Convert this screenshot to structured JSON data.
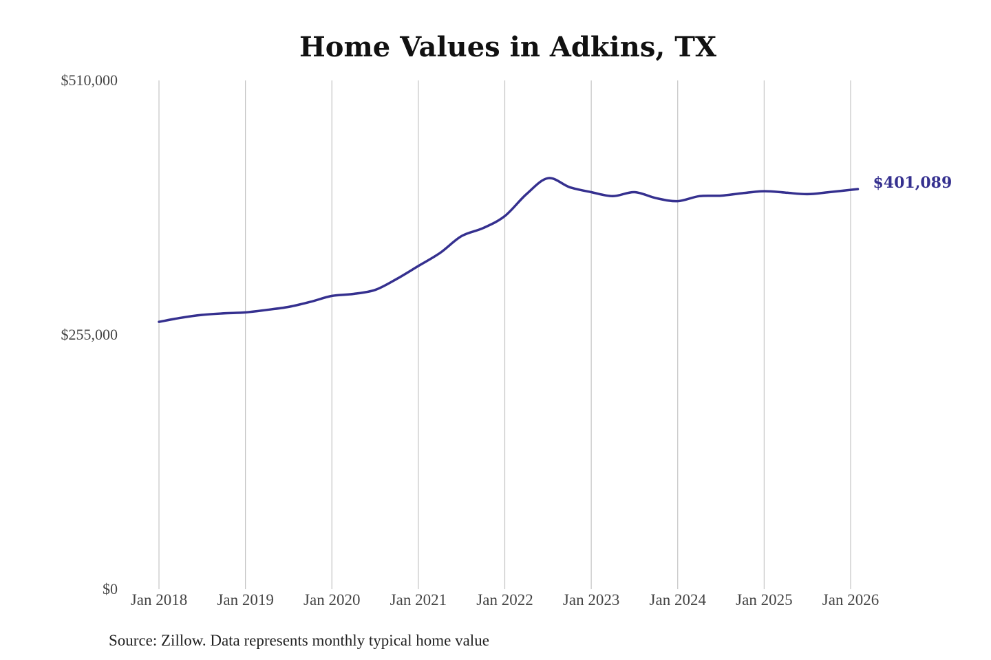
{
  "chart_data": {
    "type": "line",
    "title": "Home Values in Adkins, TX",
    "xlabel": "",
    "ylabel": "",
    "ylim": [
      0,
      510000
    ],
    "yticks": [
      {
        "value": 0,
        "label": "$0"
      },
      {
        "value": 255000,
        "label": "$255,000"
      },
      {
        "value": 510000,
        "label": "$510,000"
      }
    ],
    "xticks": [
      {
        "value": "2018-01",
        "label": "Jan 2018"
      },
      {
        "value": "2019-01",
        "label": "Jan 2019"
      },
      {
        "value": "2020-01",
        "label": "Jan 2020"
      },
      {
        "value": "2021-01",
        "label": "Jan 2021"
      },
      {
        "value": "2022-01",
        "label": "Jan 2022"
      },
      {
        "value": "2023-01",
        "label": "Jan 2023"
      },
      {
        "value": "2024-01",
        "label": "Jan 2024"
      },
      {
        "value": "2025-01",
        "label": "Jan 2025"
      },
      {
        "value": "2026-01",
        "label": "Jan 2026"
      }
    ],
    "grid": "vertical",
    "colors": {
      "line": "#35308f",
      "grid": "#c4c4c4"
    },
    "series": [
      {
        "points": [
          {
            "x": "2018-01",
            "y": 268000
          },
          {
            "x": "2018-04",
            "y": 272000
          },
          {
            "x": "2018-07",
            "y": 275000
          },
          {
            "x": "2018-10",
            "y": 276500
          },
          {
            "x": "2019-01",
            "y": 277500
          },
          {
            "x": "2019-04",
            "y": 280000
          },
          {
            "x": "2019-07",
            "y": 283000
          },
          {
            "x": "2019-10",
            "y": 288000
          },
          {
            "x": "2020-01",
            "y": 294000
          },
          {
            "x": "2020-04",
            "y": 296000
          },
          {
            "x": "2020-07",
            "y": 300000
          },
          {
            "x": "2020-10",
            "y": 311000
          },
          {
            "x": "2021-01",
            "y": 324000
          },
          {
            "x": "2021-04",
            "y": 337000
          },
          {
            "x": "2021-07",
            "y": 354000
          },
          {
            "x": "2021-10",
            "y": 362000
          },
          {
            "x": "2022-01",
            "y": 374000
          },
          {
            "x": "2022-04",
            "y": 396000
          },
          {
            "x": "2022-07",
            "y": 412000
          },
          {
            "x": "2022-10",
            "y": 403000
          },
          {
            "x": "2023-01",
            "y": 398000
          },
          {
            "x": "2023-04",
            "y": 394000
          },
          {
            "x": "2023-07",
            "y": 398000
          },
          {
            "x": "2023-10",
            "y": 392000
          },
          {
            "x": "2024-01",
            "y": 389000
          },
          {
            "x": "2024-04",
            "y": 394000
          },
          {
            "x": "2024-07",
            "y": 394500
          },
          {
            "x": "2024-10",
            "y": 397000
          },
          {
            "x": "2025-01",
            "y": 399000
          },
          {
            "x": "2025-04",
            "y": 397500
          },
          {
            "x": "2025-07",
            "y": 396000
          },
          {
            "x": "2025-10",
            "y": 398000
          },
          {
            "x": "2026-02",
            "y": 401089
          }
        ]
      }
    ],
    "annotations": [
      {
        "x": "2026-02",
        "y": 401089,
        "text": "$401,089"
      }
    ],
    "source": "Source: Zillow. Data represents monthly typical home value"
  }
}
